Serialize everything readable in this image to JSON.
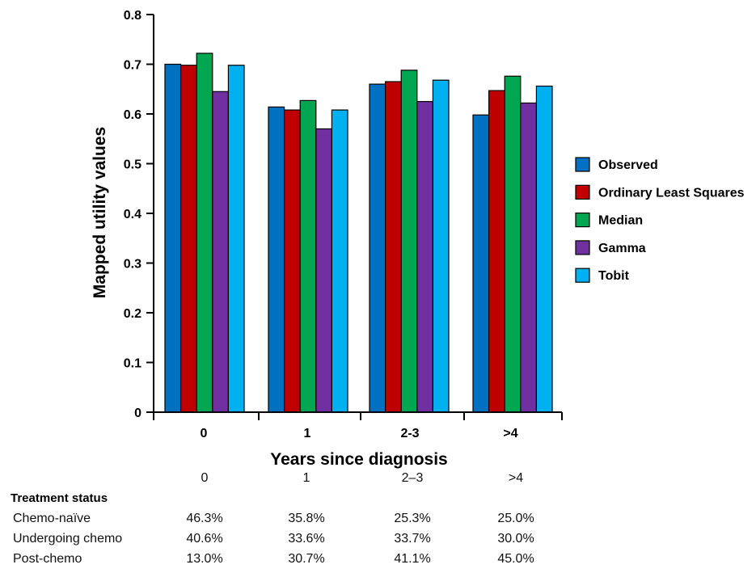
{
  "chart_data": {
    "type": "bar",
    "xlabel": "Years since diagnosis",
    "ylabel": "Mapped utility values",
    "ylim": [
      0,
      0.8
    ],
    "yticks": [
      "0",
      "0.1",
      "0.2",
      "0.3",
      "0.4",
      "0.5",
      "0.6",
      "0.7",
      "0.8"
    ],
    "categories": [
      "0",
      "1",
      "2-3",
      ">4"
    ],
    "legend_position": "right",
    "series": [
      {
        "name": "Observed",
        "color": "#0070C0",
        "values": [
          0.7,
          0.614,
          0.66,
          0.598
        ]
      },
      {
        "name": "Ordinary Least Squares",
        "color": "#C00000",
        "values": [
          0.698,
          0.608,
          0.665,
          0.647
        ]
      },
      {
        "name": "Median",
        "color": "#00A650",
        "values": [
          0.722,
          0.627,
          0.688,
          0.676
        ]
      },
      {
        "name": "Gamma",
        "color": "#7030A0",
        "values": [
          0.645,
          0.57,
          0.625,
          0.622
        ]
      },
      {
        "name": "Tobit",
        "color": "#00B0F0",
        "values": [
          0.698,
          0.608,
          0.668,
          0.656
        ]
      }
    ]
  },
  "table": {
    "columns": [
      "0",
      "1",
      "2–3",
      ">4"
    ],
    "section_label": "Treatment status",
    "rows": [
      {
        "label": "Chemo-naïve",
        "values": [
          "46.3%",
          "35.8%",
          "25.3%",
          "25.0%"
        ]
      },
      {
        "label": "Undergoing chemo",
        "values": [
          "40.6%",
          "33.6%",
          "33.7%",
          "30.0%"
        ]
      },
      {
        "label": "Post-chemo",
        "values": [
          "13.0%",
          "30.7%",
          "41.1%",
          "45.0%"
        ]
      }
    ]
  }
}
